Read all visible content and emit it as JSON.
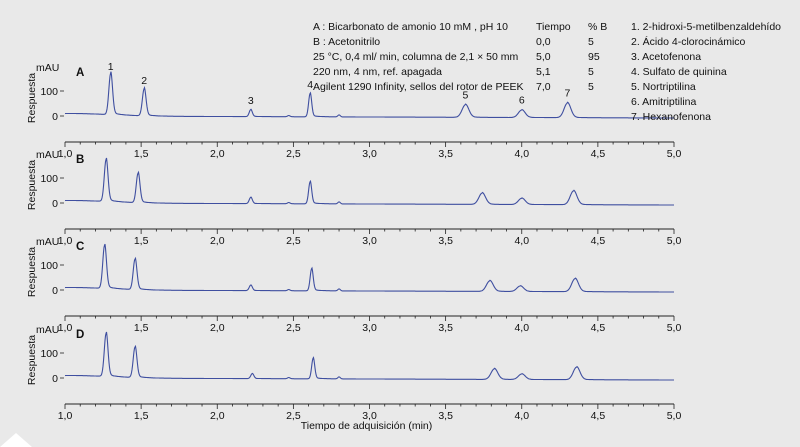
{
  "conditions": [
    "A : Bicarbonato de amonio 10 mM , pH 10",
    "B : Acetonitrilo",
    "25 °C, 0,4 ml/ min, columna de 2,1 × 50 mm",
    "220 nm, 4 nm, ref. apagada",
    "Agilent 1290 Infinity, sellos del rotor de PEEK"
  ],
  "gradient": {
    "headers": [
      "Tiempo",
      "% B"
    ],
    "rows": [
      [
        "0,0",
        "5"
      ],
      [
        "5,0",
        "95"
      ],
      [
        "5,1",
        "5"
      ],
      [
        "7,0",
        "5"
      ]
    ]
  },
  "compounds": [
    "1. 2-hidroxi-5-metilbenzaldehído",
    "2. Ácido 4-clorocinámico",
    "3. Acetofenona",
    "4. Sulfato de quinina",
    "5. Nortriptilina",
    "6. Amitriptilina",
    "7. Hexanofenona"
  ],
  "chart_data": {
    "type": "line",
    "xlabel": "Tiempo de adquisición (min)",
    "ylabel": "Respuesta",
    "yunit": "mAU",
    "xlim": [
      1.0,
      5.0
    ],
    "xticks": [
      "1,0",
      "1,5",
      "2,0",
      "2,5",
      "3,0",
      "3,5",
      "4,0",
      "4,5",
      "5,0"
    ],
    "yticks": [
      "100",
      "0"
    ],
    "panels": [
      {
        "label": "A",
        "peak_labels": [
          "1",
          "2",
          "3",
          "4",
          "5",
          "6",
          "7"
        ],
        "peaks": [
          {
            "t": 1.3,
            "h": 165
          },
          {
            "t": 1.52,
            "h": 108
          },
          {
            "t": 2.22,
            "h": 28
          },
          {
            "t": 2.61,
            "h": 93
          },
          {
            "t": 3.63,
            "h": 50
          },
          {
            "t": 4.0,
            "h": 30
          },
          {
            "t": 4.3,
            "h": 58
          }
        ]
      },
      {
        "label": "B",
        "peak_labels": [],
        "peaks": [
          {
            "t": 1.27,
            "h": 168
          },
          {
            "t": 1.48,
            "h": 118
          },
          {
            "t": 2.22,
            "h": 25
          },
          {
            "t": 2.61,
            "h": 88
          },
          {
            "t": 3.74,
            "h": 45
          },
          {
            "t": 4.0,
            "h": 25
          },
          {
            "t": 4.34,
            "h": 55
          }
        ]
      },
      {
        "label": "C",
        "peak_labels": [],
        "peaks": [
          {
            "t": 1.26,
            "h": 172
          },
          {
            "t": 1.46,
            "h": 122
          },
          {
            "t": 2.22,
            "h": 22
          },
          {
            "t": 2.62,
            "h": 88
          },
          {
            "t": 3.79,
            "h": 42
          },
          {
            "t": 3.99,
            "h": 22
          },
          {
            "t": 4.35,
            "h": 52
          }
        ]
      },
      {
        "label": "D",
        "peak_labels": [],
        "peaks": [
          {
            "t": 1.27,
            "h": 172
          },
          {
            "t": 1.46,
            "h": 122
          },
          {
            "t": 2.23,
            "h": 20
          },
          {
            "t": 2.63,
            "h": 82
          },
          {
            "t": 3.82,
            "h": 42
          },
          {
            "t": 4.0,
            "h": 22
          },
          {
            "t": 4.36,
            "h": 50
          }
        ]
      }
    ]
  },
  "colors": {
    "trace": "#3f4fa0",
    "background": "#e9e9e9"
  }
}
